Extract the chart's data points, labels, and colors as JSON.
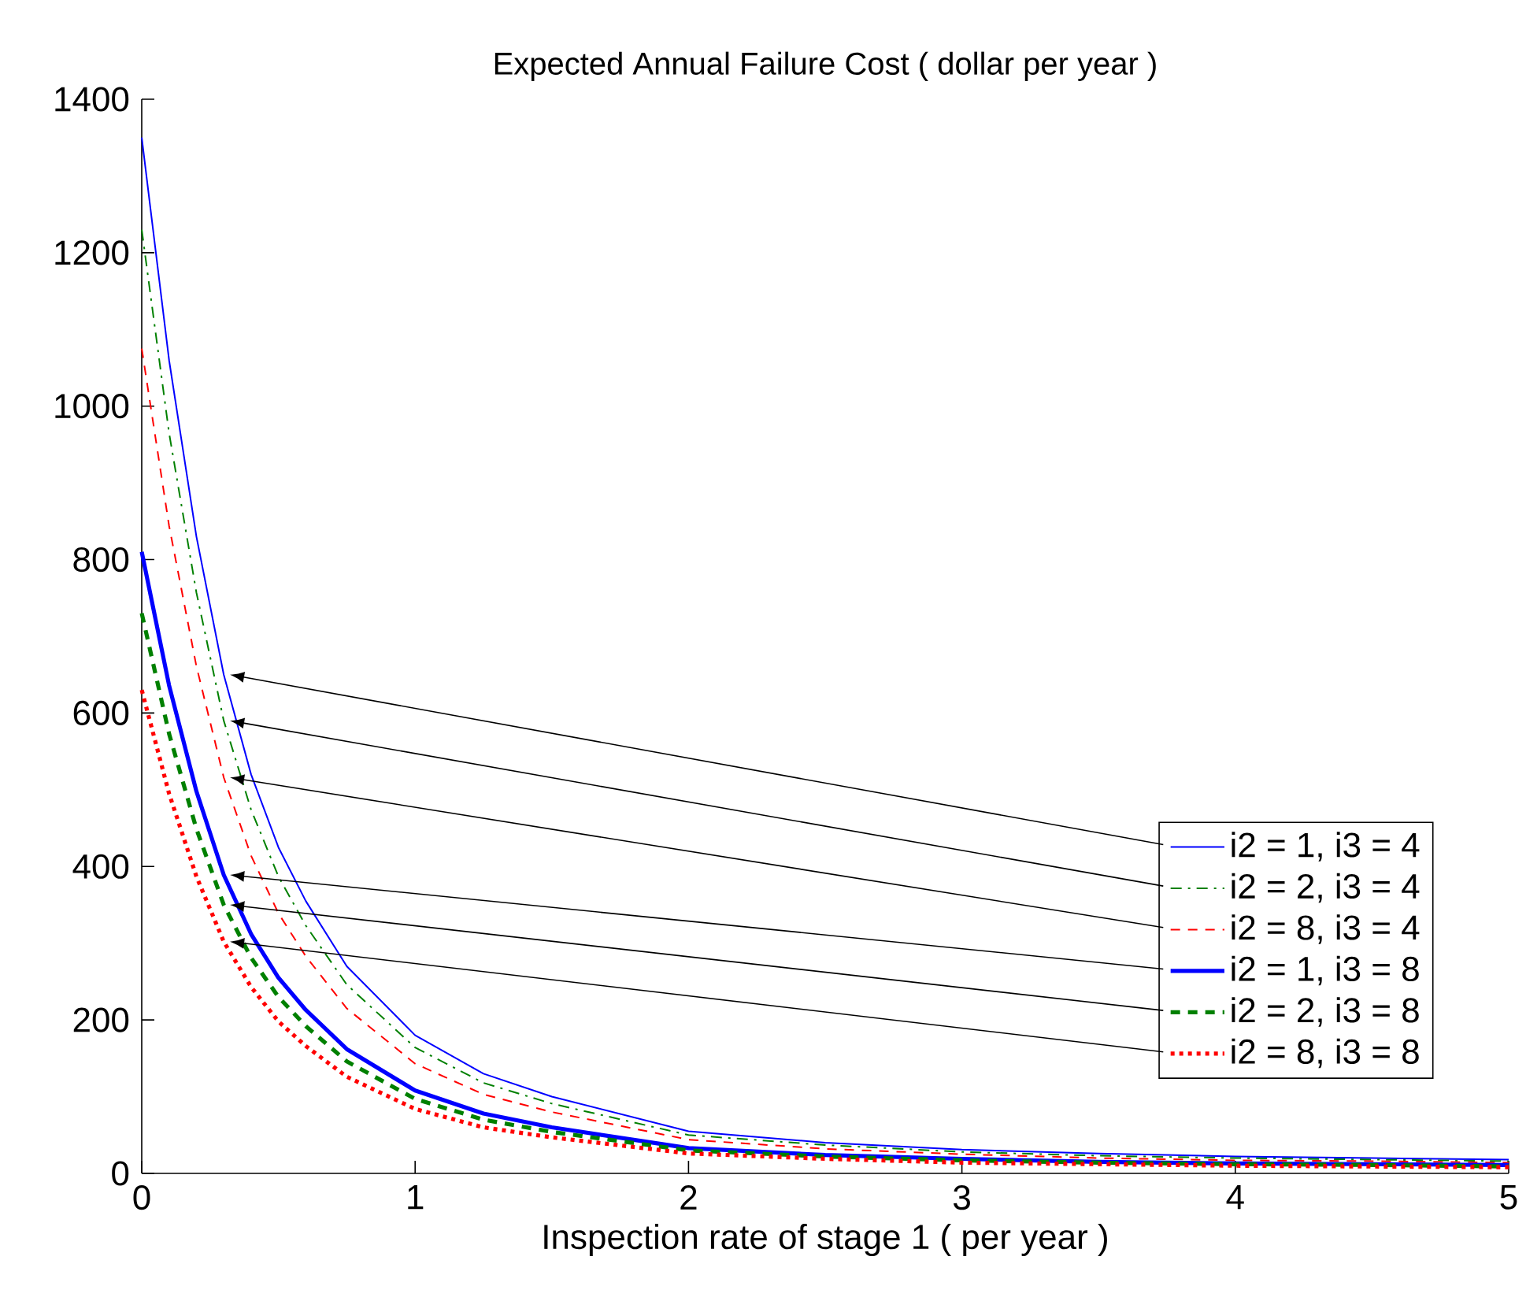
{
  "chart_data": {
    "type": "line",
    "title": "Expected Annual Failure Cost ( dollar per year )",
    "xlabel": "Inspection rate of stage 1 ( per year )",
    "x": [
      0,
      0.1,
      0.2,
      0.3,
      0.4,
      0.5,
      0.6,
      0.75,
      1,
      1.25,
      1.5,
      2,
      2.5,
      3,
      3.5,
      4,
      4.5,
      5
    ],
    "series": [
      {
        "name": "i2 = 1, i3 = 4",
        "color": "#0000ff",
        "line_style": "solid",
        "values": [
          1350,
          1060,
          830,
          650,
          520,
          425,
          355,
          270,
          180,
          130,
          100,
          55,
          40,
          31,
          26,
          22,
          20,
          18
        ]
      },
      {
        "name": "i2 = 2, i3 = 4",
        "color": "#008000",
        "line_style": "dashdot",
        "values": [
          1230,
          965,
          757,
          590,
          474,
          387,
          323,
          246,
          164,
          118,
          91,
          50,
          37,
          28,
          23,
          20,
          18,
          16
        ]
      },
      {
        "name": "i2 = 8, i3 = 4",
        "color": "#ff0000",
        "line_style": "dashed",
        "values": [
          1075,
          844,
          661,
          516,
          414,
          339,
          283,
          215,
          143,
          103,
          80,
          44,
          32,
          25,
          20,
          17,
          16,
          14
        ]
      },
      {
        "name": "i2 = 1, i3 = 8",
        "color": "#0000ff",
        "line_style": "solid",
        "values": [
          810,
          636,
          498,
          389,
          312,
          255,
          213,
          162,
          108,
          78,
          60,
          33,
          24,
          19,
          15,
          13,
          12,
          11
        ]
      },
      {
        "name": "i2 = 2, i3 = 8",
        "color": "#008000",
        "line_style": "dashed",
        "values": [
          730,
          573,
          449,
          350,
          281,
          230,
          192,
          146,
          97,
          70,
          54,
          30,
          22,
          17,
          14,
          12,
          11,
          9
        ]
      },
      {
        "name": "i2 = 8, i3 = 8",
        "color": "#ff0000",
        "line_style": "dotted",
        "values": [
          630,
          495,
          387,
          302,
          243,
          198,
          166,
          126,
          84,
          60,
          47,
          26,
          19,
          14,
          12,
          10,
          9,
          8
        ]
      }
    ],
    "xlim": [
      0,
      5
    ],
    "ylim": [
      0,
      1400
    ],
    "xticks": [
      0,
      1,
      2,
      3,
      4,
      5
    ],
    "yticks": [
      0,
      200,
      400,
      600,
      800,
      1000,
      1200,
      1400
    ],
    "grid": false,
    "legend": "right",
    "marker": "none"
  }
}
